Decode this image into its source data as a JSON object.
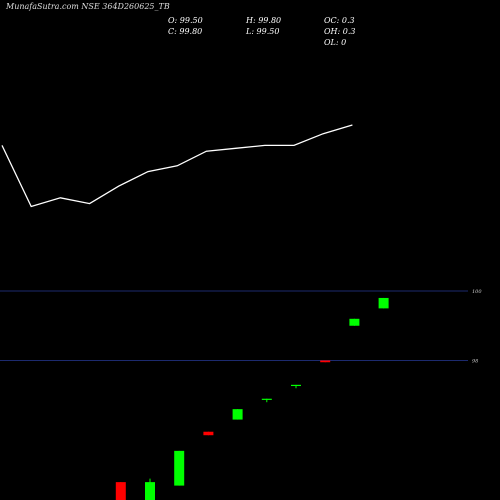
{
  "header": {
    "title": "MunafaSutra.com NSE 364D260625_TB",
    "o": "O: 99.50",
    "h": "H: 99.80",
    "oc": "OC: 0.3",
    "c": "C: 99.80",
    "l": "L: 99.50",
    "oh": "OH: 0.3",
    "ol": "OL: 0"
  },
  "colors": {
    "up": "#00ff00",
    "down": "#ff0000",
    "line": "#ffffff",
    "grid": "#1c2a6e",
    "bg": "#000000"
  },
  "chart_data": {
    "type": "candlestick",
    "title": "MunafaSutra.com NSE 364D260625_TB",
    "price_axis": {
      "ticks": [
        {
          "label": "100",
          "value": 100
        },
        {
          "label": "98",
          "value": 98
        }
      ],
      "ylim": [
        93.3,
        100.4
      ]
    },
    "line_series": {
      "values": [
        98.0,
        95.9,
        96.2,
        96.0,
        96.6,
        97.1,
        97.3,
        97.8,
        97.9,
        98.0,
        98.0,
        98.4,
        98.7
      ]
    },
    "candles": [
      {
        "open": 93.4,
        "high": 93.6,
        "low": 93.4,
        "close": 93.55,
        "dir": "up"
      },
      {
        "open": 94.5,
        "high": 94.5,
        "low": 93.4,
        "close": 93.4,
        "dir": "down"
      },
      {
        "open": 93.4,
        "high": 94.6,
        "low": 93.4,
        "close": 94.5,
        "dir": "up"
      },
      {
        "open": 94.4,
        "high": 95.4,
        "low": 94.4,
        "close": 95.4,
        "dir": "up"
      },
      {
        "open": 95.95,
        "high": 95.95,
        "low": 95.85,
        "close": 95.85,
        "dir": "down"
      },
      {
        "open": 96.3,
        "high": 96.6,
        "low": 96.3,
        "close": 96.6,
        "dir": "up"
      },
      {
        "open": 96.9,
        "high": 96.9,
        "low": 96.8,
        "close": 96.9,
        "dir": "up"
      },
      {
        "open": 97.3,
        "high": 97.3,
        "low": 97.2,
        "close": 97.3,
        "dir": "up"
      },
      {
        "open": 98.0,
        "high": 98.0,
        "low": 97.95,
        "close": 97.95,
        "dir": "down"
      },
      {
        "open": 99.0,
        "high": 99.2,
        "low": 99.0,
        "close": 99.2,
        "dir": "up"
      },
      {
        "open": 99.5,
        "high": 99.8,
        "low": 99.5,
        "close": 99.8,
        "dir": "up"
      }
    ],
    "candle_slots": [
      3,
      4,
      5,
      6,
      7,
      8,
      9,
      10,
      11,
      12,
      13
    ]
  }
}
